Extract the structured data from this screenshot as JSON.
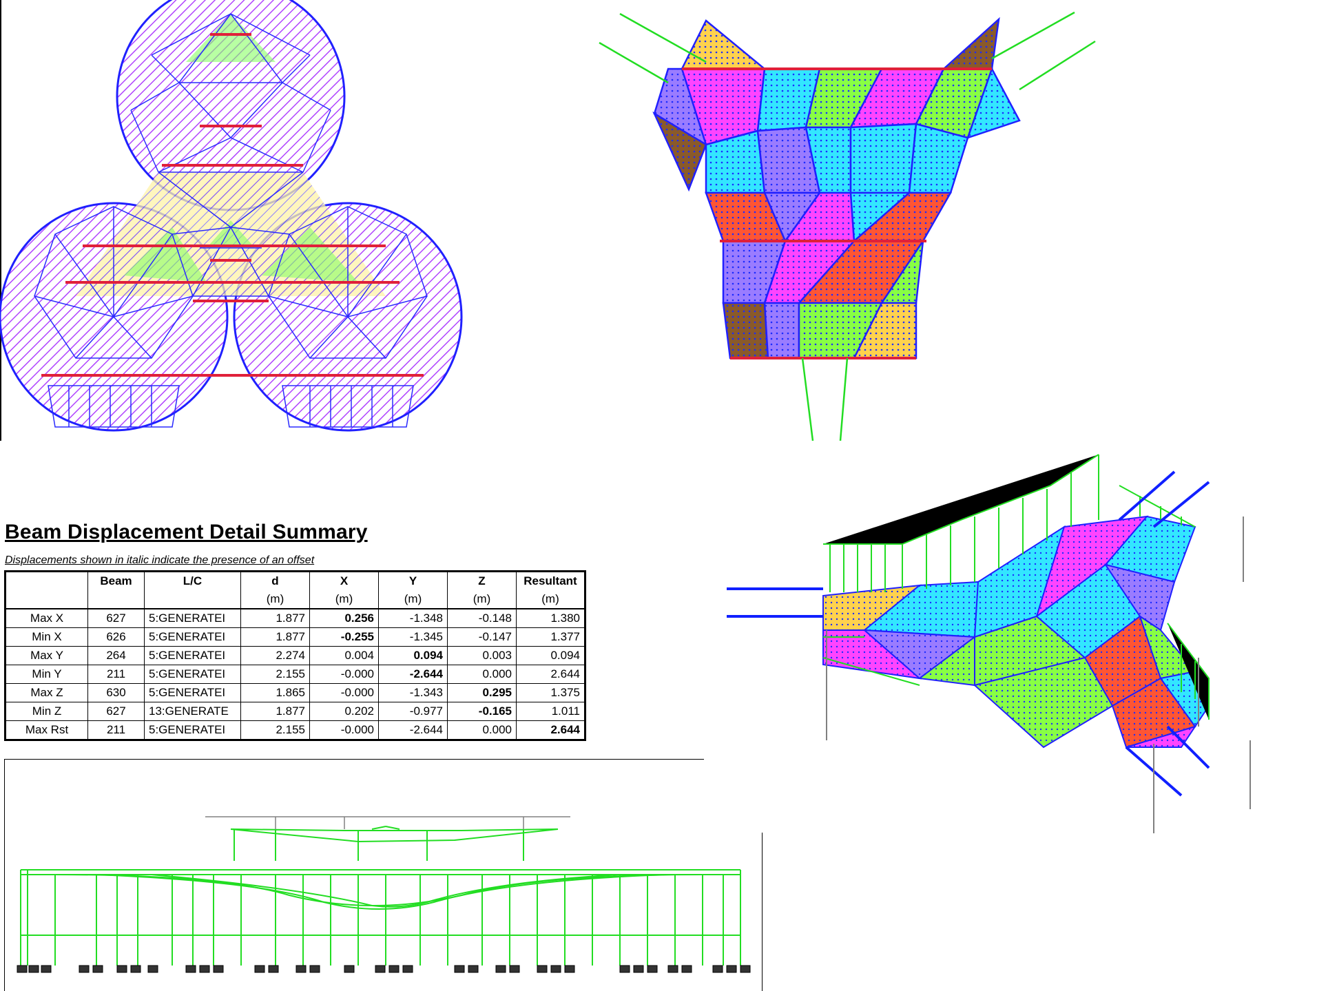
{
  "report": {
    "title": "Beam Displacement Detail Summary",
    "note": "Displacements shown in italic indicate the presence of an offset"
  },
  "table": {
    "headers": [
      "",
      "Beam",
      "L/C",
      "d",
      "X",
      "Y",
      "Z",
      "Resultant"
    ],
    "units": [
      "",
      "",
      "",
      "(m)",
      "(m)",
      "(m)",
      "(m)",
      "(m)"
    ],
    "rows": [
      {
        "label": "Max X",
        "beam": "627",
        "lc": "5:GENERATEI",
        "d": "1.877",
        "x": "0.256",
        "y": "-1.348",
        "z": "-0.148",
        "r": "1.380"
      },
      {
        "label": "Min X",
        "beam": "626",
        "lc": "5:GENERATEI",
        "d": "1.877",
        "x": "-0.255",
        "y": "-1.345",
        "z": "-0.147",
        "r": "1.377"
      },
      {
        "label": "Max Y",
        "beam": "264",
        "lc": "5:GENERATEI",
        "d": "2.274",
        "x": "0.004",
        "y": "0.094",
        "z": "0.003",
        "r": "0.094"
      },
      {
        "label": "Min Y",
        "beam": "211",
        "lc": "5:GENERATEI",
        "d": "2.155",
        "x": "-0.000",
        "y": "-2.644",
        "z": "0.000",
        "r": "2.644"
      },
      {
        "label": "Max Z",
        "beam": "630",
        "lc": "5:GENERATEI",
        "d": "1.865",
        "x": "-0.000",
        "y": "-1.343",
        "z": "0.295",
        "r": "1.375"
      },
      {
        "label": "Min Z",
        "beam": "627",
        "lc": "13:GENERATE",
        "d": "1.877",
        "x": "0.202",
        "y": "-0.977",
        "z": "-0.165",
        "r": "1.011"
      },
      {
        "label": "Max Rst",
        "beam": "211",
        "lc": "5:GENERATEI",
        "d": "2.155",
        "x": "-0.000",
        "y": "-2.644",
        "z": "0.000",
        "r": "2.644"
      }
    ]
  },
  "colors": {
    "member_blue": "#2020ff",
    "member_red": "#e0203a",
    "load_green": "#22dd22",
    "load_blue": "#1020ff",
    "plate_fills": [
      "#33e6ff",
      "#ff44ff",
      "#88ff44",
      "#ff5533",
      "#ffd24d",
      "#9a7cff",
      "#8a5a2a"
    ]
  }
}
